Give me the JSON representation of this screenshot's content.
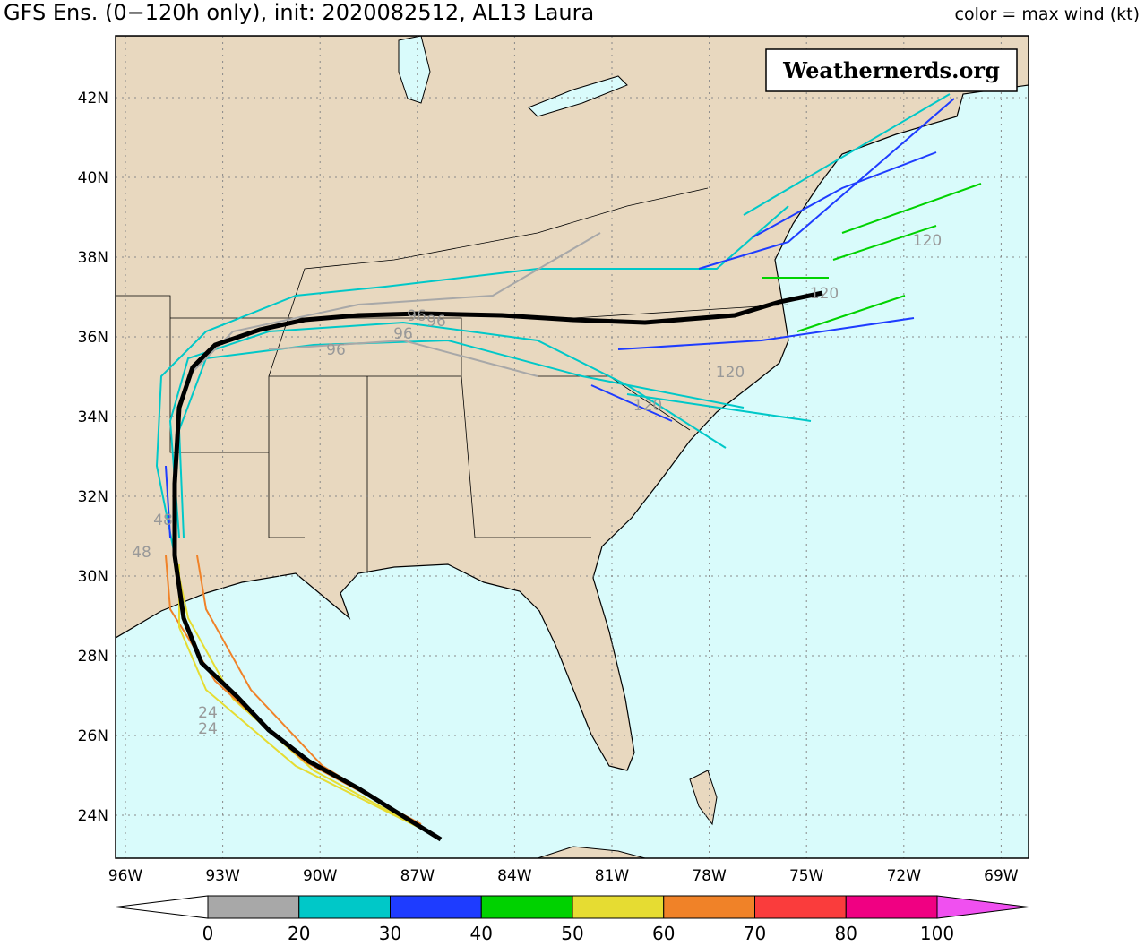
{
  "header": {
    "title": "GFS Ens. (0−120h only), init: 2020082512, AL13 Laura",
    "color_label": "color = max wind (kt)"
  },
  "watermark": "Weathernerds.org",
  "map": {
    "lon_labels": [
      "96W",
      "93W",
      "90W",
      "87W",
      "84W",
      "81W",
      "78W",
      "75W",
      "72W",
      "69W"
    ],
    "lat_labels": [
      "42N",
      "40N",
      "38N",
      "36N",
      "34N",
      "32N",
      "30N",
      "28N",
      "26N",
      "24N"
    ],
    "hour_labels": [
      "120",
      "120",
      "120",
      "120",
      "96",
      "96",
      "96",
      "96",
      "48",
      "48",
      "24",
      "24"
    ]
  },
  "colorbar": {
    "ticks": [
      0,
      20,
      30,
      40,
      50,
      60,
      70,
      80,
      100
    ],
    "colors": [
      "#a8a8a8",
      "#00c8c8",
      "#1e3cff",
      "#00d200",
      "#e6dc32",
      "#f08228",
      "#fa3c3c",
      "#f00082",
      "#f050f0"
    ]
  }
}
